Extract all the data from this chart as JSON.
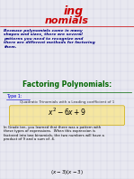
{
  "bg_color": "#e8e8f0",
  "title_line1": "ing",
  "title_line2": "nomials",
  "title_color": "#cc0000",
  "intro_text": "Because polynomials come in many\nshapes and sizes, there are several\npatterns you need to recognize and\nthere are different methods for factoring\nthem.",
  "intro_color": "#000080",
  "section_title": "Factoring Polynomials:",
  "section_title_color": "#006600",
  "type_label": "Type 1:",
  "type_color": "#0000cc",
  "subtitle": "Quadratic Trinomials with a Leading coefficient of 1",
  "subtitle_color": "#333333",
  "formula": "$x^2 - 6x + 9$",
  "formula_box_color": "#f5e6a0",
  "formula_box_edge": "#ccaa00",
  "formula_color": "#000000",
  "body_text": "In Grade ten, you learned that there was a pattern with\nthese types of expressions.  When this expression is\nfactored into two binomials, the two numbers will have a\nproduct of 9 and a sum of -6.",
  "body_color": "#000000",
  "bottom_expr": "$(x-3)(x-3)$",
  "bottom_color": "#000000",
  "grid_color": "#aaaacc",
  "line_color": "#cc0000"
}
